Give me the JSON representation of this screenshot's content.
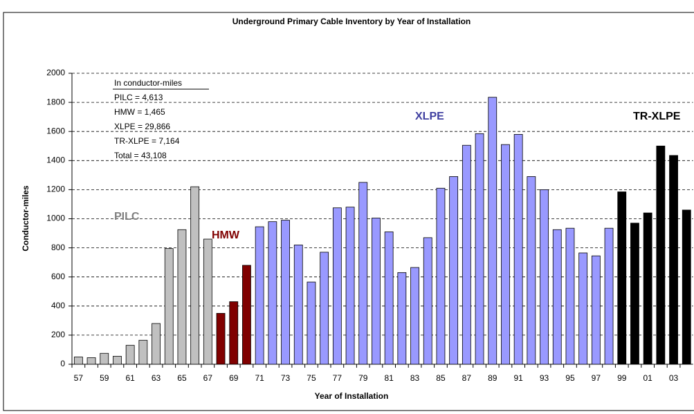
{
  "chart_data": {
    "type": "bar",
    "title": "Underground Primary Cable Inventory by Year of Installation",
    "x_label": "Year of Installation",
    "y_label": "Conductor-miles",
    "annotations": [
      "In conductor-miles",
      "PILC  = 4,613",
      "HMW = 1,465",
      "XLPE = 29,866",
      "TR-XLPE = 7,164",
      "Total   =  43,108"
    ],
    "categories": [
      "57",
      null,
      "59",
      null,
      "61",
      null,
      "63",
      null,
      "65",
      null,
      "67",
      null,
      "69",
      null,
      "71",
      null,
      "73",
      null,
      "75",
      null,
      "77",
      null,
      "79",
      null,
      "81",
      null,
      "83",
      null,
      "85",
      null,
      "87",
      null,
      "89",
      null,
      "91",
      null,
      "93",
      null,
      "95",
      null,
      "97",
      null,
      "99",
      null,
      "01",
      null,
      "03",
      null
    ],
    "series": [
      {
        "name": "PILC",
        "color": "#c0c0c0",
        "values": [
          50,
          45,
          75,
          55,
          130,
          165,
          280,
          795,
          925,
          1220,
          860,
          null,
          null,
          null,
          null,
          null,
          null,
          null,
          null,
          null,
          null,
          null,
          null,
          null,
          null,
          null,
          null,
          null,
          null,
          null,
          null,
          null,
          null,
          null,
          null,
          null,
          null,
          null,
          null,
          null,
          null,
          null,
          null,
          null,
          null,
          null,
          null,
          null
        ]
      },
      {
        "name": "HMW",
        "color": "#800000",
        "values": [
          null,
          null,
          null,
          null,
          null,
          null,
          null,
          null,
          null,
          null,
          null,
          350,
          430,
          680,
          null,
          null,
          null,
          null,
          null,
          null,
          null,
          null,
          null,
          null,
          null,
          null,
          null,
          null,
          null,
          null,
          null,
          null,
          null,
          null,
          null,
          null,
          null,
          null,
          null,
          null,
          null,
          null,
          null,
          null,
          null,
          null,
          null,
          null
        ]
      },
      {
        "name": "XLPE",
        "color": "#9999ff",
        "values": [
          null,
          null,
          null,
          null,
          null,
          null,
          null,
          null,
          null,
          null,
          null,
          null,
          null,
          null,
          945,
          980,
          990,
          820,
          565,
          770,
          1075,
          1080,
          1250,
          1005,
          910,
          630,
          665,
          870,
          1210,
          1290,
          1505,
          1585,
          1835,
          1510,
          1580,
          1290,
          1200,
          925,
          935,
          765,
          745,
          935,
          null,
          null,
          null,
          null,
          null,
          null
        ]
      },
      {
        "name": "TR-XLPE",
        "color": "#000000",
        "values": [
          null,
          null,
          null,
          null,
          null,
          null,
          null,
          null,
          null,
          null,
          null,
          null,
          null,
          null,
          null,
          null,
          null,
          null,
          null,
          null,
          null,
          null,
          null,
          null,
          null,
          null,
          null,
          null,
          null,
          null,
          null,
          null,
          null,
          null,
          null,
          null,
          null,
          null,
          null,
          null,
          null,
          null,
          1185,
          970,
          1040,
          1500,
          1435,
          1060
        ]
      }
    ],
    "ylim": [
      0,
      2000
    ],
    "yticks": [
      0,
      200,
      400,
      600,
      800,
      1000,
      1200,
      1400,
      1600,
      1800,
      2000
    ],
    "grid": true
  }
}
